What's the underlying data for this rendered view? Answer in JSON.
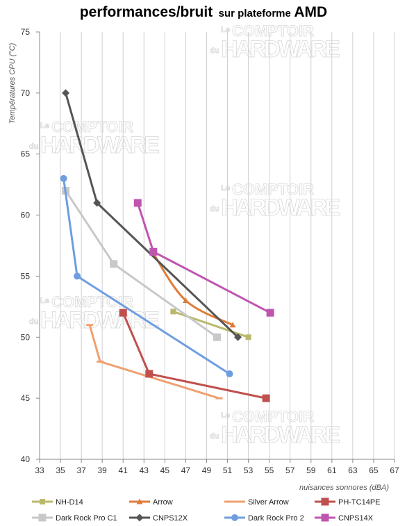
{
  "title": {
    "main": "performances/bruit",
    "sub": "sur plateforme",
    "brand": "AMD"
  },
  "watermark": {
    "small": "Le",
    "top": "COMPTOIR",
    "prefix": "du",
    "bottom": "HARDWARE"
  },
  "chart_data": {
    "type": "line",
    "xlabel": "nuisances sonnores (dBA)",
    "ylabel": "Températures CPU (°C)",
    "xlim": [
      33,
      67
    ],
    "ylim": [
      40,
      75
    ],
    "x_ticks": [
      "33",
      "35",
      "37",
      "39",
      "41",
      "43",
      "45",
      "47",
      "49",
      "51",
      "53",
      "55",
      "57",
      "59",
      "61",
      "63",
      "65",
      "67"
    ],
    "y_ticks": [
      "40",
      "45",
      "50",
      "55",
      "60",
      "65",
      "70",
      "75"
    ],
    "grid": "vertical",
    "legend_position": "bottom",
    "series": [
      {
        "name": "NH-D14",
        "color": "#b9b96b",
        "marker": "square-small",
        "smooth": false,
        "points": [
          [
            45.8,
            52.1
          ],
          [
            53,
            50
          ]
        ]
      },
      {
        "name": "Arrow",
        "color": "#e07b39",
        "marker": "triangle",
        "smooth": true,
        "points": [
          [
            43.8,
            57
          ],
          [
            47,
            53
          ],
          [
            51.5,
            51
          ]
        ]
      },
      {
        "name": "Silver Arrow",
        "color": "#f0a070",
        "marker": "dash",
        "smooth": false,
        "points": [
          [
            37.8,
            51
          ],
          [
            38.8,
            48
          ],
          [
            50.2,
            45
          ]
        ]
      },
      {
        "name": "PH-TC14PE",
        "color": "#c0504d",
        "marker": "square",
        "smooth": false,
        "points": [
          [
            41,
            52
          ],
          [
            43.5,
            47
          ],
          [
            54.7,
            45
          ]
        ]
      },
      {
        "name": "Dark Rock Pro C1",
        "color": "#c8c8c8",
        "marker": "square",
        "smooth": false,
        "points": [
          [
            35.5,
            62
          ],
          [
            40.1,
            56
          ],
          [
            50,
            50
          ]
        ]
      },
      {
        "name": "CNPS12X",
        "color": "#555555",
        "marker": "diamond",
        "smooth": false,
        "points": [
          [
            35.5,
            70
          ],
          [
            38.5,
            61
          ],
          [
            52,
            50
          ]
        ]
      },
      {
        "name": "Dark Rock Pro 2",
        "color": "#6f9ee0",
        "marker": "circle",
        "smooth": false,
        "points": [
          [
            35.3,
            63
          ],
          [
            36.6,
            55
          ],
          [
            51.2,
            47
          ]
        ]
      },
      {
        "name": "CNPS14X",
        "color": "#c055b0",
        "marker": "square",
        "smooth": false,
        "points": [
          [
            42.4,
            61
          ],
          [
            43.9,
            57
          ],
          [
            55.1,
            52
          ]
        ]
      }
    ]
  }
}
